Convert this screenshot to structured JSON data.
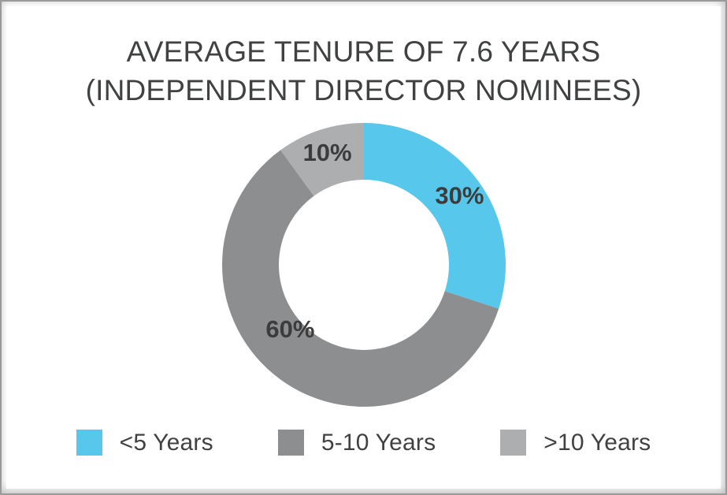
{
  "card": {
    "title_line1": "AVERAGE TENURE OF 7.6 YEARS",
    "title_line2": "(INDEPENDENT DIRECTOR NOMINEES)"
  },
  "chart_data": {
    "type": "pie",
    "subtype": "donut",
    "title": "AVERAGE TENURE OF 7.6 YEARS (INDEPENDENT DIRECTOR NOMINEES)",
    "categories": [
      "<5 Years",
      "5-10 Years",
      ">10 Years"
    ],
    "values": [
      30,
      60,
      10
    ],
    "unit": "%",
    "slices": [
      {
        "label": "<5 Years",
        "value": 30,
        "display": "30%",
        "color": "#57C7EB",
        "label_pos_r": 150
      },
      {
        "label": "5-10 Years",
        "value": 60,
        "display": "60%",
        "color": "#8C8E90",
        "label_pos_deg": 229,
        "label_pos_r": 124
      },
      {
        "label": ">10 Years",
        "value": 10,
        "display": "10%",
        "color": "#ACAEB0",
        "label_pos_r": 150
      }
    ],
    "start_angle_deg": 0,
    "direction": "clockwise",
    "donut_hole_ratio": 0.6,
    "legend_position": "bottom",
    "grid": false,
    "label_color": "#3C3C3C"
  }
}
